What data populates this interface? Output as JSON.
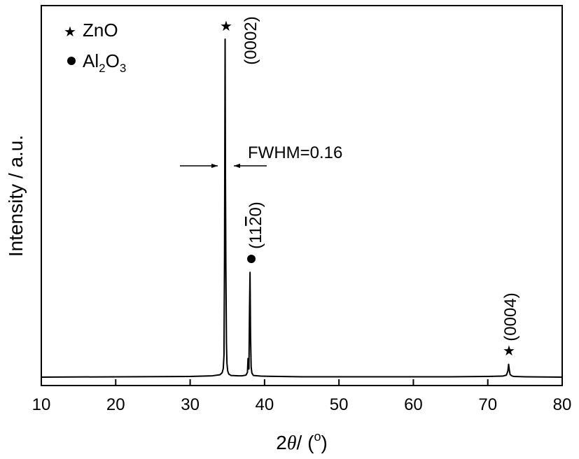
{
  "chart_data": {
    "type": "line",
    "title": "",
    "xlabel_prefix": "2",
    "xlabel_symbol": "θ",
    "xlabel_unit_open": "/ (",
    "xlabel_unit_sup": "o",
    "xlabel_unit_close": ")",
    "ylabel": "Intensity / a.u.",
    "xlim": [
      10,
      80
    ],
    "ylim": [
      0,
      100
    ],
    "xticks": [
      10,
      20,
      30,
      40,
      50,
      60,
      70,
      80
    ],
    "grid": false,
    "legend_position": "top-left",
    "legend": [
      {
        "marker": "star",
        "label": "ZnO"
      },
      {
        "marker": "circle",
        "label": "Al",
        "sub1": "2",
        "mid": "O",
        "sub2": "3"
      }
    ],
    "series": [
      {
        "x": [
          10,
          30,
          33,
          34.0,
          34.3,
          34.45,
          34.55,
          34.62,
          34.7,
          34.75,
          34.8,
          34.88,
          34.95,
          35.05,
          35.2,
          35.5,
          36.5,
          37.0,
          37.5,
          37.7,
          37.78,
          37.84,
          37.9,
          37.98,
          38.05,
          38.12,
          38.2,
          38.3,
          38.5,
          39.5,
          45,
          55,
          65,
          70,
          72,
          72.5,
          72.7,
          72.8,
          72.9,
          73.0,
          73.2,
          73.5,
          75,
          80
        ],
        "y": [
          0.0,
          0.2,
          0.4,
          0.7,
          1.3,
          2.5,
          6.5,
          35.0,
          100.0,
          58.0,
          34.0,
          10.0,
          4.0,
          1.8,
          0.9,
          0.5,
          0.4,
          0.4,
          0.6,
          1.4,
          5.5,
          2.8,
          2.4,
          20.0,
          31.0,
          12.0,
          3.0,
          1.2,
          0.5,
          0.3,
          0.1,
          0.1,
          0.1,
          0.2,
          0.3,
          0.6,
          1.8,
          3.8,
          2.0,
          0.8,
          0.4,
          0.2,
          0.1,
          0.0
        ]
      }
    ],
    "annotations": {
      "peak1_label": "(0002)",
      "peak2_label": "(11",
      "peak2_bar_digit": "2",
      "peak2_label_end": "0)",
      "peak3_label": "(0004)",
      "fwhm_label": "FWHM=0.16"
    }
  }
}
